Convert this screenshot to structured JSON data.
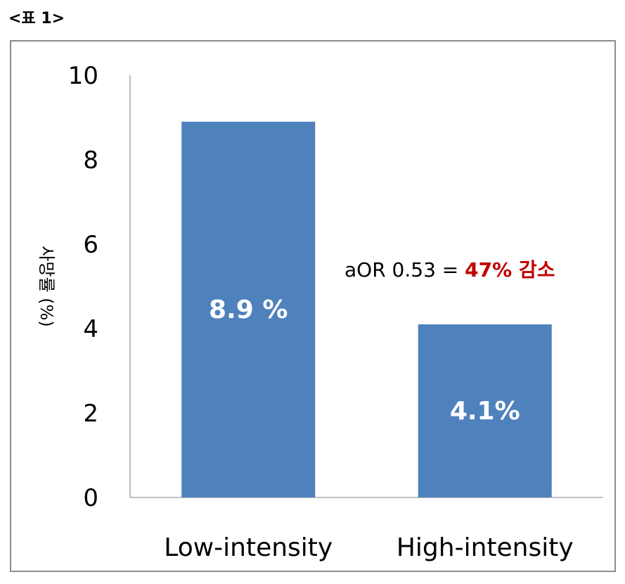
{
  "caption": "<표 1>",
  "chart_data": {
    "type": "bar",
    "categories": [
      "Low-intensity",
      "High-intensity"
    ],
    "values": [
      8.9,
      4.1
    ],
    "data_labels": [
      "8.9 %",
      "4.1%"
    ],
    "ylabel": "사망률 (%)",
    "ylim": [
      0,
      10
    ],
    "yticks": [
      "0",
      "2",
      "4",
      "6",
      "8",
      "10"
    ],
    "grid": false,
    "bar_color": "#4f81bd",
    "annotation": {
      "prefix": "aOR 0.53 =",
      "highlight": "47% 감소",
      "highlight_color": "#c00000"
    }
  }
}
